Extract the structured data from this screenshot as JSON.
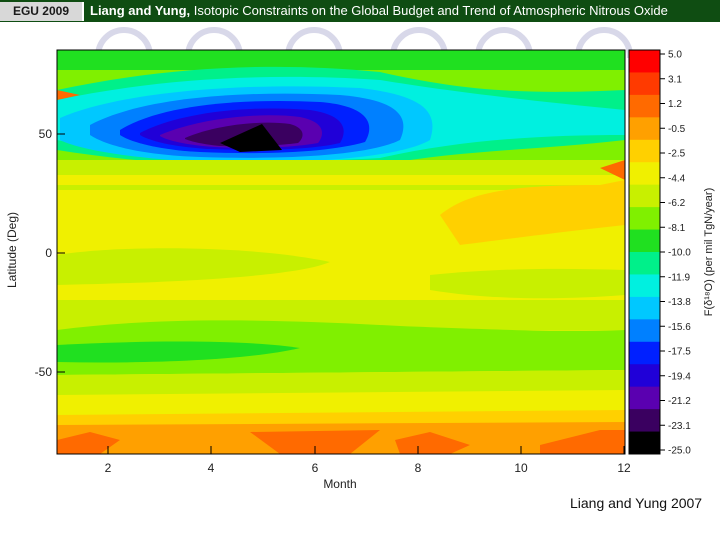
{
  "header": {
    "badge": "EGU 2009",
    "authors": "Liang and Yung,",
    "title": "Isotopic Constraints on the Global Budget and Trend of Atmospheric Nitrous Oxide"
  },
  "credit": "Liang and Yung 2007",
  "colors": {
    "header_bg": "#0f4d12",
    "badge_bg": "#d8d8d8"
  },
  "chart_data": {
    "type": "heatmap",
    "xlabel": "Month",
    "ylabel": "Latitude  (Deg)",
    "x_ticks": [
      "2",
      "4",
      "6",
      "8",
      "10",
      "12"
    ],
    "y_ticks": [
      "50",
      "0",
      "-50"
    ],
    "xlim": [
      1,
      12
    ],
    "ylim": [
      -85,
      85
    ],
    "colorbar": {
      "label": "F(δ¹⁸O)  (per mil TgN/year)",
      "levels": [
        "5.0",
        "3.1",
        "1.2",
        "-0.5",
        "-2.5",
        "-4.4",
        "-6.2",
        "-8.1",
        "-10.0",
        "-11.9",
        "-13.8",
        "-15.6",
        "-17.5",
        "-19.4",
        "-21.2",
        "-23.1",
        "-25.0"
      ],
      "colors": [
        "#ff0000",
        "#ff3a00",
        "#ff6a00",
        "#ffa000",
        "#ffd000",
        "#f0f000",
        "#c8f000",
        "#80f000",
        "#20e020",
        "#00f08a",
        "#00f0e0",
        "#00c8ff",
        "#0080ff",
        "#0020ff",
        "#2000d8",
        "#5a00b0",
        "#3a0060",
        "#000000"
      ]
    }
  }
}
